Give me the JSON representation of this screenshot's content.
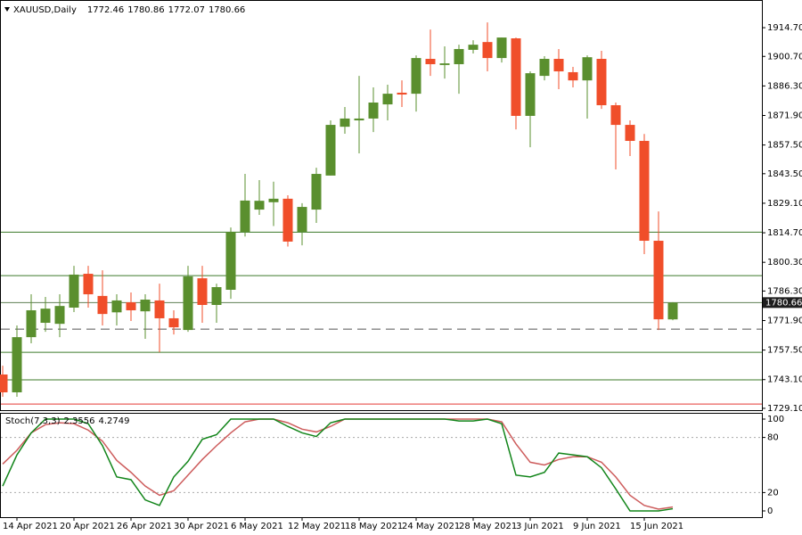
{
  "chart_data": [
    {
      "type": "candlestick",
      "symbol": "XAUUSD,Daily",
      "categories": [
        null,
        "14 Apr 2021",
        null,
        null,
        null,
        "20 Apr 2021",
        null,
        null,
        null,
        "26 Apr 2021",
        null,
        null,
        null,
        "30 Apr 2021",
        null,
        null,
        null,
        "6 May 2021",
        null,
        null,
        null,
        "12 May 2021",
        null,
        null,
        null,
        "18 May 2021",
        null,
        null,
        null,
        "24 May 2021",
        null,
        null,
        null,
        "28 May 2021",
        null,
        null,
        null,
        "3 Jun 2021",
        null,
        null,
        null,
        "9 Jun 2021",
        null,
        null,
        null,
        "15 Jun 2021",
        null,
        null
      ],
      "open": [
        1745.6,
        1736.9,
        1763.8,
        1770.8,
        1770.3,
        1778.2,
        1794.7,
        1783.9,
        1775.9,
        1780.8,
        1776.4,
        1781.7,
        1773.0,
        1767.3,
        1792.5,
        1779.5,
        1786.9,
        1815.1,
        1826.0,
        1829.6,
        1831.3,
        1815.1,
        1826.0,
        1842.6,
        1866.4,
        1869.5,
        1870.4,
        1877.3,
        1883.0,
        1882.5,
        1899.5,
        1896.5,
        1896.9,
        1903.9,
        1907.7,
        1899.9,
        1909.5,
        1871.7,
        1891.2,
        1899.5,
        1893.0,
        1889.0,
        1899.5,
        1876.9,
        1867.3,
        1859.5,
        1810.8,
        1772.46
      ],
      "high": [
        1749.9,
        1769.5,
        1784.7,
        1783.4,
        1784.7,
        1798.6,
        1798.6,
        1796.4,
        1784.7,
        1785.6,
        1784.7,
        1789.9,
        1776.9,
        1798.6,
        1798.6,
        1789.9,
        1817.3,
        1843.4,
        1840.4,
        1839.6,
        1833.0,
        1829.1,
        1846.4,
        1869.5,
        1876.0,
        1891.2,
        1885.6,
        1886.9,
        1889.0,
        1901.2,
        1913.8,
        1905.6,
        1906.4,
        1908.6,
        1917.3,
        1909.9,
        1909.9,
        1893.4,
        1900.8,
        1904.3,
        1895.6,
        1901.2,
        1903.4,
        1878.2,
        1869.5,
        1862.9,
        1825.1,
        1780.86
      ],
      "low": [
        1734.7,
        1734.7,
        1760.8,
        1766.4,
        1763.8,
        1776.0,
        1778.2,
        1769.5,
        1769.5,
        1771.7,
        1763.0,
        1756.4,
        1765.1,
        1766.4,
        1770.8,
        1770.8,
        1782.5,
        1812.9,
        1823.4,
        1818.0,
        1808.0,
        1808.6,
        1819.5,
        1842.6,
        1863.0,
        1853.4,
        1863.8,
        1869.5,
        1876.0,
        1873.8,
        1891.2,
        1889.9,
        1882.5,
        1902.1,
        1893.4,
        1897.7,
        1865.1,
        1856.4,
        1889.0,
        1884.7,
        1885.6,
        1870.4,
        1875.1,
        1845.6,
        1852.1,
        1804.3,
        1767.3,
        1772.07
      ],
      "close": [
        1736.9,
        1763.8,
        1776.9,
        1777.7,
        1779.0,
        1794.3,
        1784.7,
        1775.1,
        1781.7,
        1776.9,
        1782.1,
        1773.0,
        1768.6,
        1793.4,
        1779.5,
        1788.2,
        1815.1,
        1830.4,
        1830.3,
        1831.3,
        1810.4,
        1827.3,
        1843.4,
        1867.3,
        1870.4,
        1870.4,
        1878.2,
        1882.5,
        1882.1,
        1899.9,
        1896.9,
        1897.3,
        1904.3,
        1906.4,
        1899.9,
        1909.9,
        1871.7,
        1892.5,
        1899.5,
        1893.4,
        1889.0,
        1900.3,
        1876.9,
        1867.3,
        1859.5,
        1810.8,
        1772.5,
        1780.66
      ],
      "up_color": "#5a8f2e",
      "down_color": "#f04e2a",
      "ylim": [
        1728.2,
        1928.2
      ],
      "yticks": [
        {
          "value": 1914.7,
          "label": "1914.70"
        },
        {
          "value": 1900.7,
          "label": "1900.70"
        },
        {
          "value": 1886.3,
          "label": "1886.30"
        },
        {
          "value": 1871.9,
          "label": "1871.90"
        },
        {
          "value": 1857.5,
          "label": "1857.50"
        },
        {
          "value": 1843.5,
          "label": "1843.50"
        },
        {
          "value": 1829.1,
          "label": "1829.10"
        },
        {
          "value": 1814.7,
          "label": "1814.70"
        },
        {
          "value": 1800.3,
          "label": "1800.30"
        },
        {
          "value": 1786.3,
          "label": "1786.30"
        },
        {
          "value": 1771.9,
          "label": "1771.90"
        },
        {
          "value": 1757.5,
          "label": "1757.50"
        },
        {
          "value": 1743.1,
          "label": "1743.10"
        },
        {
          "value": 1729.1,
          "label": "1729.10"
        }
      ],
      "levels": [
        {
          "value": 1815.0,
          "color": "#3d7a2a",
          "dashed": false
        },
        {
          "value": 1793.8,
          "color": "#3d7a2a",
          "dashed": false
        },
        {
          "value": 1767.7,
          "color": "#555555",
          "dashed": true
        },
        {
          "value": 1756.4,
          "color": "#3d7a2a",
          "dashed": false
        },
        {
          "value": 1743.0,
          "color": "#3d7a2a",
          "dashed": false
        },
        {
          "value": 1731.2,
          "color": "#e53935",
          "dashed": false
        }
      ],
      "price_line_color": "#5f7f55"
    },
    {
      "type": "line",
      "name": "Stoch(7,3,3)",
      "series": [
        {
          "color": "#12851a",
          "values": [
            27,
            61,
            85,
            100,
            100,
            100,
            95,
            71,
            37,
            34,
            12,
            6,
            37,
            54,
            78,
            83,
            100,
            100,
            100,
            100,
            92,
            85,
            81,
            96,
            100,
            100,
            100,
            100,
            100,
            100,
            100,
            100,
            98,
            98,
            100,
            95,
            39,
            37,
            42,
            63,
            61,
            59,
            47,
            24,
            0,
            0,
            0,
            2.3556
          ]
        },
        {
          "color": "#cd5c5c",
          "values": [
            51,
            66,
            85,
            94,
            96,
            95,
            88,
            76,
            55,
            42,
            27,
            17,
            22,
            39,
            56,
            71,
            85,
            97,
            100,
            100,
            96,
            89,
            86,
            92,
            100,
            100,
            100,
            100,
            100,
            100,
            100,
            100,
            100,
            100,
            100,
            97,
            73,
            53,
            50,
            56,
            59,
            59,
            53,
            37,
            17,
            6,
            2,
            4.2749
          ]
        }
      ],
      "ylim": [
        -6.8,
        106.8
      ],
      "yticks": [
        100,
        80,
        20,
        0
      ],
      "levels": [
        80,
        20
      ]
    }
  ]
}
